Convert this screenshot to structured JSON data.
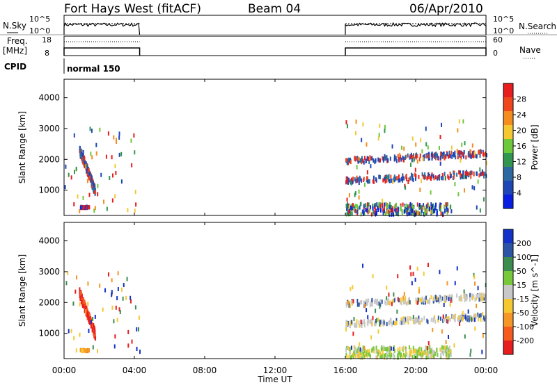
{
  "header": {
    "title": "Fort Hays West (fitACF)",
    "beam": "Beam 04",
    "date": "06/Apr/2010"
  },
  "noise_panel": {
    "left_label": "N.Sky",
    "right_label": "N.Search",
    "left_ticks": [
      "10^5",
      "10^0"
    ],
    "right_ticks": [
      "10^5",
      "10^0"
    ]
  },
  "freq_panel": {
    "left_label_1": "Freq.",
    "left_label_2": "[MHz]",
    "right_label": "Nave",
    "left_ticks": [
      "18",
      "8"
    ],
    "right_ticks": [
      "60",
      "0"
    ]
  },
  "cpid_panel": {
    "label": "CPID",
    "mode": "normal 150"
  },
  "x_axis": {
    "title": "Time UT",
    "ticks": [
      "00:00",
      "04:00",
      "08:00",
      "12:00",
      "16:00",
      "20:00",
      "00:00"
    ]
  },
  "chart_data": [
    {
      "type": "heatmap",
      "name": "power",
      "ylabel": "Slant Range [km]",
      "yticks": [
        "4000",
        "3000",
        "2000",
        "1000"
      ],
      "ylim": [
        180,
        4600
      ],
      "xlim": [
        0,
        24
      ],
      "colorbar_label": "Power [dB]",
      "colorbar_ticks": [
        "28",
        "24",
        "20",
        "16",
        "12",
        "8",
        "4"
      ],
      "colorbar_colors": [
        "#e81e1e",
        "#f0461e",
        "#f58c1e",
        "#f5c832",
        "#6ec83c",
        "#329650",
        "#2d69a0",
        "#1e46b4",
        "#0a1ee1"
      ],
      "segments": [
        {
          "t": [
            0.85,
            1.7
          ],
          "r": [
            400,
            2400
          ],
          "desc": "early echo band"
        },
        {
          "t": [
            16.0,
            24.0
          ],
          "r": [
            1200,
            2300
          ],
          "desc": "evening echo band"
        }
      ]
    },
    {
      "type": "heatmap",
      "name": "velocity",
      "ylabel": "Slant Range [km]",
      "yticks": [
        "4000",
        "3000",
        "2000",
        "1000"
      ],
      "ylim": [
        180,
        4600
      ],
      "xlim": [
        0,
        24
      ],
      "colorbar_label": "Velocity [m s^-1]",
      "colorbar_ticks": [
        "200",
        "100",
        "50",
        "15",
        "-15",
        "-50",
        "-100",
        "-200"
      ],
      "colorbar_colors": [
        "#1432c8",
        "#2d55a5",
        "#3c8c50",
        "#78c83c",
        "#c8c8c8",
        "#f5c832",
        "#f59628",
        "#f55a1e",
        "#e81e1e"
      ]
    }
  ]
}
